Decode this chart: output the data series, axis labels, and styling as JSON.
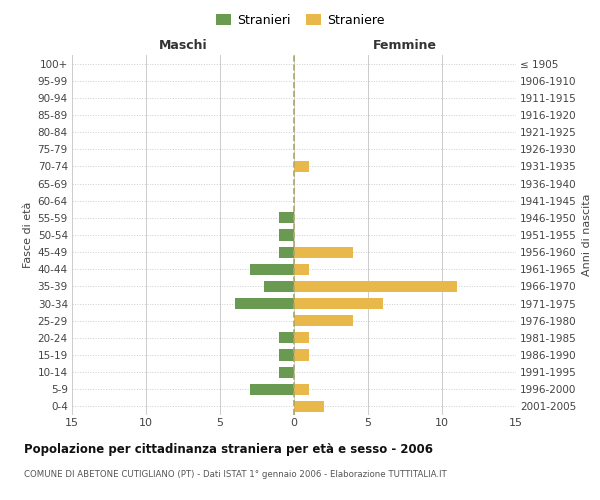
{
  "age_groups": [
    "100+",
    "95-99",
    "90-94",
    "85-89",
    "80-84",
    "75-79",
    "70-74",
    "65-69",
    "60-64",
    "55-59",
    "50-54",
    "45-49",
    "40-44",
    "35-39",
    "30-34",
    "25-29",
    "20-24",
    "15-19",
    "10-14",
    "5-9",
    "0-4"
  ],
  "birth_years": [
    "≤ 1905",
    "1906-1910",
    "1911-1915",
    "1916-1920",
    "1921-1925",
    "1926-1930",
    "1931-1935",
    "1936-1940",
    "1941-1945",
    "1946-1950",
    "1951-1955",
    "1956-1960",
    "1961-1965",
    "1966-1970",
    "1971-1975",
    "1976-1980",
    "1981-1985",
    "1986-1990",
    "1991-1995",
    "1996-2000",
    "2001-2005"
  ],
  "males": [
    0,
    0,
    0,
    0,
    0,
    0,
    0,
    0,
    0,
    1,
    1,
    1,
    3,
    2,
    4,
    0,
    1,
    1,
    1,
    3,
    0
  ],
  "females": [
    0,
    0,
    0,
    0,
    0,
    0,
    1,
    0,
    0,
    0,
    0,
    4,
    1,
    11,
    6,
    4,
    1,
    1,
    0,
    1,
    2
  ],
  "male_color": "#6a9a52",
  "female_color": "#e8b84b",
  "xlim": 15,
  "title": "Popolazione per cittadinanza straniera per età e sesso - 2006",
  "subtitle": "COMUNE DI ABETONE CUTIGLIANO (PT) - Dati ISTAT 1° gennaio 2006 - Elaborazione TUTTITALIA.IT",
  "ylabel_left": "Fasce di età",
  "ylabel_right": "Anni di nascita",
  "header_left": "Maschi",
  "header_right": "Femmine",
  "legend_males": "Stranieri",
  "legend_females": "Straniere",
  "background_color": "#ffffff",
  "grid_color": "#cccccc",
  "grid_color_y": "#cccccc",
  "dashed_line_color": "#aaa866"
}
